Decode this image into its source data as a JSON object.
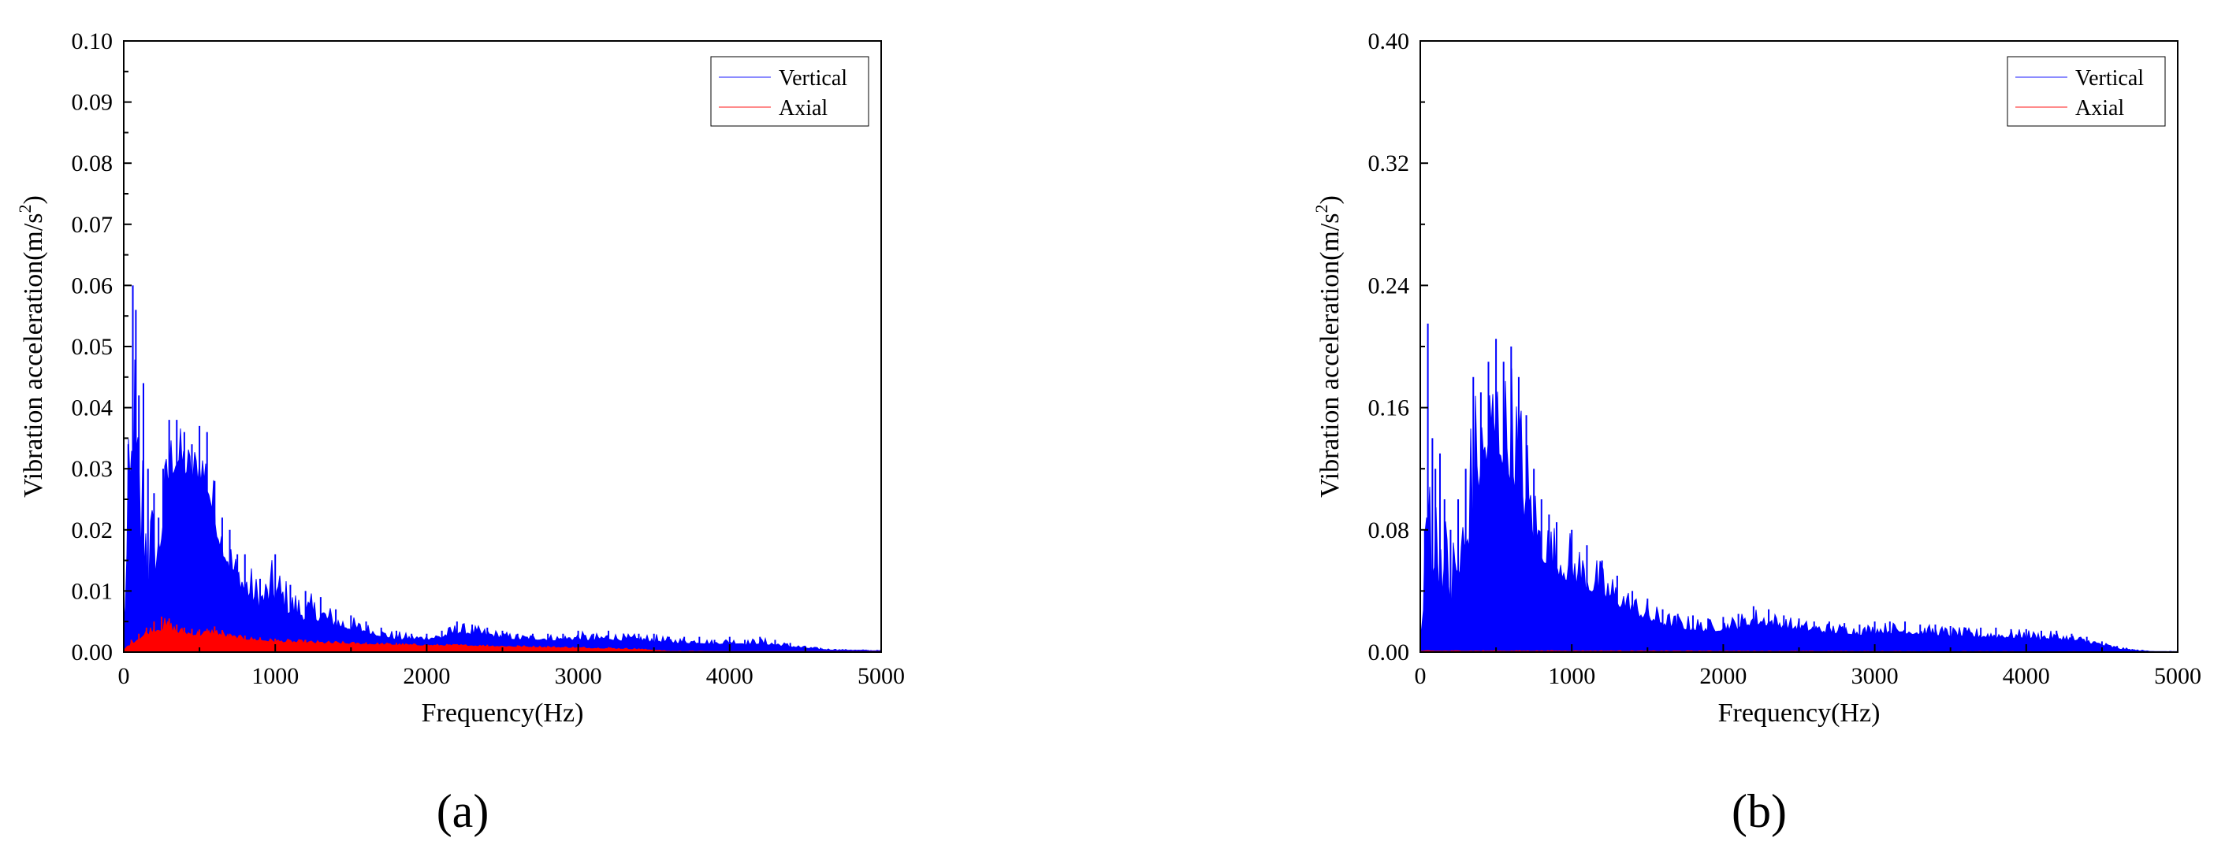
{
  "colors": {
    "vertical": "#0000ff",
    "axial": "#ff0000",
    "axis": "#000000"
  },
  "chart_data": [
    {
      "type": "area",
      "panel_label": "(a)",
      "xlabel": "Frequency(Hz)",
      "ylabel": "Vibration acceleration(m/s",
      "ylabel_sup": "2",
      "ylabel_close": ")",
      "xlim": [
        0,
        5000
      ],
      "ylim": [
        0,
        0.1
      ],
      "xticks": [
        "0",
        "1000",
        "2000",
        "3000",
        "4000",
        "5000"
      ],
      "yticks": [
        "0.00",
        "0.01",
        "0.02",
        "0.03",
        "0.04",
        "0.05",
        "0.06",
        "0.07",
        "0.08",
        "0.09",
        "0.10"
      ],
      "grid": false,
      "legend_position": "top-right",
      "series": [
        {
          "name": "Vertical",
          "color": "#0000ff",
          "x": [
            0,
            30,
            60,
            80,
            100,
            130,
            160,
            200,
            230,
            260,
            300,
            350,
            400,
            450,
            500,
            550,
            600,
            650,
            700,
            750,
            800,
            900,
            1000,
            1100,
            1200,
            1300,
            1400,
            1500,
            1600,
            1700,
            1800,
            1900,
            2000,
            2100,
            2200,
            2300,
            2400,
            2500,
            2600,
            2700,
            2800,
            2900,
            3000,
            3100,
            3200,
            3300,
            3400,
            3500,
            3600,
            3700,
            3800,
            3900,
            4000,
            4100,
            4200,
            4300,
            4400,
            4500,
            4600,
            4700,
            4800,
            4900,
            5000
          ],
          "y_peak": [
            0.005,
            0.034,
            0.06,
            0.056,
            0.042,
            0.044,
            0.03,
            0.026,
            0.022,
            0.03,
            0.038,
            0.038,
            0.036,
            0.034,
            0.037,
            0.036,
            0.028,
            0.022,
            0.02,
            0.016,
            0.016,
            0.012,
            0.016,
            0.011,
            0.01,
            0.009,
            0.007,
            0.006,
            0.005,
            0.004,
            0.0035,
            0.003,
            0.003,
            0.0035,
            0.005,
            0.0045,
            0.004,
            0.0035,
            0.003,
            0.003,
            0.003,
            0.003,
            0.0035,
            0.003,
            0.0035,
            0.003,
            0.003,
            0.003,
            0.0025,
            0.0025,
            0.0025,
            0.002,
            0.0025,
            0.002,
            0.0025,
            0.002,
            0.0015,
            0.001,
            0.0007,
            0.0005,
            0.0004,
            0.0004,
            0.0003
          ],
          "y_body": [
            0.003,
            0.014,
            0.02,
            0.016,
            0.012,
            0.013,
            0.011,
            0.012,
            0.014,
            0.02,
            0.028,
            0.03,
            0.029,
            0.027,
            0.028,
            0.026,
            0.02,
            0.016,
            0.013,
            0.011,
            0.009,
            0.007,
            0.008,
            0.006,
            0.005,
            0.005,
            0.004,
            0.0035,
            0.003,
            0.0025,
            0.002,
            0.002,
            0.002,
            0.0022,
            0.003,
            0.0028,
            0.0025,
            0.0022,
            0.002,
            0.002,
            0.0019,
            0.0018,
            0.002,
            0.0018,
            0.002,
            0.0018,
            0.0017,
            0.0016,
            0.0015,
            0.0014,
            0.0014,
            0.0012,
            0.0014,
            0.0012,
            0.0013,
            0.001,
            0.0008,
            0.0006,
            0.0004,
            0.0003,
            0.0003,
            0.0002,
            0.0002
          ]
        },
        {
          "name": "Axial",
          "color": "#ff0000",
          "x": [
            0,
            50,
            100,
            150,
            200,
            250,
            300,
            350,
            400,
            450,
            500,
            550,
            600,
            650,
            700,
            800,
            900,
            1000,
            1200,
            1400,
            1600,
            1800,
            2000,
            2200,
            2400,
            2600,
            2800,
            3000,
            3200,
            3400,
            3500,
            3600,
            4000,
            4500,
            5000
          ],
          "y_peak": [
            0.0005,
            0.002,
            0.003,
            0.004,
            0.005,
            0.0058,
            0.0055,
            0.0045,
            0.004,
            0.0038,
            0.0037,
            0.0038,
            0.0042,
            0.0036,
            0.003,
            0.0027,
            0.0024,
            0.0022,
            0.002,
            0.0018,
            0.0016,
            0.0015,
            0.0013,
            0.0013,
            0.0012,
            0.0011,
            0.001,
            0.0009,
            0.0008,
            0.0006,
            0.0004,
            0.0002,
            0.0001,
            0.0001,
            0.0001
          ],
          "y_body": [
            0.0003,
            0.0012,
            0.002,
            0.0026,
            0.0032,
            0.0035,
            0.0034,
            0.003,
            0.0028,
            0.0027,
            0.0026,
            0.0027,
            0.0029,
            0.0025,
            0.0022,
            0.002,
            0.0018,
            0.0016,
            0.0014,
            0.0013,
            0.0012,
            0.0011,
            0.001,
            0.001,
            0.0009,
            0.0008,
            0.0007,
            0.0006,
            0.0005,
            0.0004,
            0.0003,
            0.0001,
            0.0001,
            0.0001,
            0.0001
          ]
        }
      ]
    },
    {
      "type": "area",
      "panel_label": "(b)",
      "xlabel": "Frequency(Hz)",
      "ylabel": "Vibration acceleration(m/s",
      "ylabel_sup": "2",
      "ylabel_close": ")",
      "xlim": [
        0,
        5000
      ],
      "ylim": [
        0,
        0.4
      ],
      "xticks": [
        "0",
        "1000",
        "2000",
        "3000",
        "4000",
        "5000"
      ],
      "yticks": [
        "0.00",
        "0.08",
        "0.16",
        "0.24",
        "0.32",
        "0.40"
      ],
      "grid": false,
      "legend_position": "top-right",
      "series": [
        {
          "name": "Vertical",
          "color": "#0000ff",
          "x": [
            0,
            30,
            50,
            80,
            100,
            130,
            160,
            200,
            250,
            300,
            350,
            400,
            450,
            500,
            550,
            600,
            650,
            700,
            750,
            800,
            850,
            900,
            1000,
            1100,
            1200,
            1300,
            1400,
            1500,
            1600,
            1700,
            1800,
            1900,
            2000,
            2100,
            2200,
            2300,
            2400,
            2500,
            2600,
            2700,
            2800,
            2900,
            3000,
            3100,
            3200,
            3300,
            3400,
            3500,
            3600,
            3700,
            3800,
            3900,
            4000,
            4100,
            4200,
            4300,
            4400,
            4500,
            4600,
            4700,
            4800,
            4900,
            5000
          ],
          "y_peak": [
            0.01,
            0.08,
            0.215,
            0.14,
            0.12,
            0.13,
            0.1,
            0.08,
            0.1,
            0.12,
            0.18,
            0.17,
            0.19,
            0.205,
            0.19,
            0.2,
            0.18,
            0.155,
            0.12,
            0.1,
            0.09,
            0.085,
            0.08,
            0.07,
            0.06,
            0.05,
            0.04,
            0.035,
            0.028,
            0.025,
            0.024,
            0.022,
            0.023,
            0.025,
            0.03,
            0.028,
            0.024,
            0.022,
            0.02,
            0.02,
            0.019,
            0.018,
            0.02,
            0.02,
            0.02,
            0.018,
            0.018,
            0.017,
            0.016,
            0.016,
            0.016,
            0.015,
            0.015,
            0.014,
            0.014,
            0.012,
            0.01,
            0.007,
            0.004,
            0.002,
            0.001,
            0.0005,
            0.0005
          ],
          "y_body": [
            0.005,
            0.03,
            0.06,
            0.05,
            0.045,
            0.04,
            0.035,
            0.03,
            0.04,
            0.05,
            0.09,
            0.11,
            0.12,
            0.13,
            0.12,
            0.11,
            0.1,
            0.08,
            0.07,
            0.06,
            0.055,
            0.05,
            0.045,
            0.04,
            0.035,
            0.03,
            0.025,
            0.02,
            0.017,
            0.015,
            0.014,
            0.013,
            0.014,
            0.015,
            0.018,
            0.017,
            0.015,
            0.014,
            0.013,
            0.012,
            0.012,
            0.011,
            0.012,
            0.012,
            0.012,
            0.011,
            0.011,
            0.01,
            0.01,
            0.009,
            0.009,
            0.009,
            0.009,
            0.008,
            0.008,
            0.007,
            0.006,
            0.004,
            0.002,
            0.001,
            0.0005,
            0.0003,
            0.0003
          ]
        },
        {
          "name": "Axial",
          "color": "#ff0000",
          "x": [
            0,
            1000,
            2000,
            3000,
            4000,
            5000
          ],
          "y_peak": [
            0.001,
            0.001,
            0.0008,
            0.0006,
            0.0004,
            0.0002
          ],
          "y_body": [
            0.0005,
            0.0005,
            0.0004,
            0.0003,
            0.0002,
            0.0001
          ]
        }
      ]
    }
  ]
}
